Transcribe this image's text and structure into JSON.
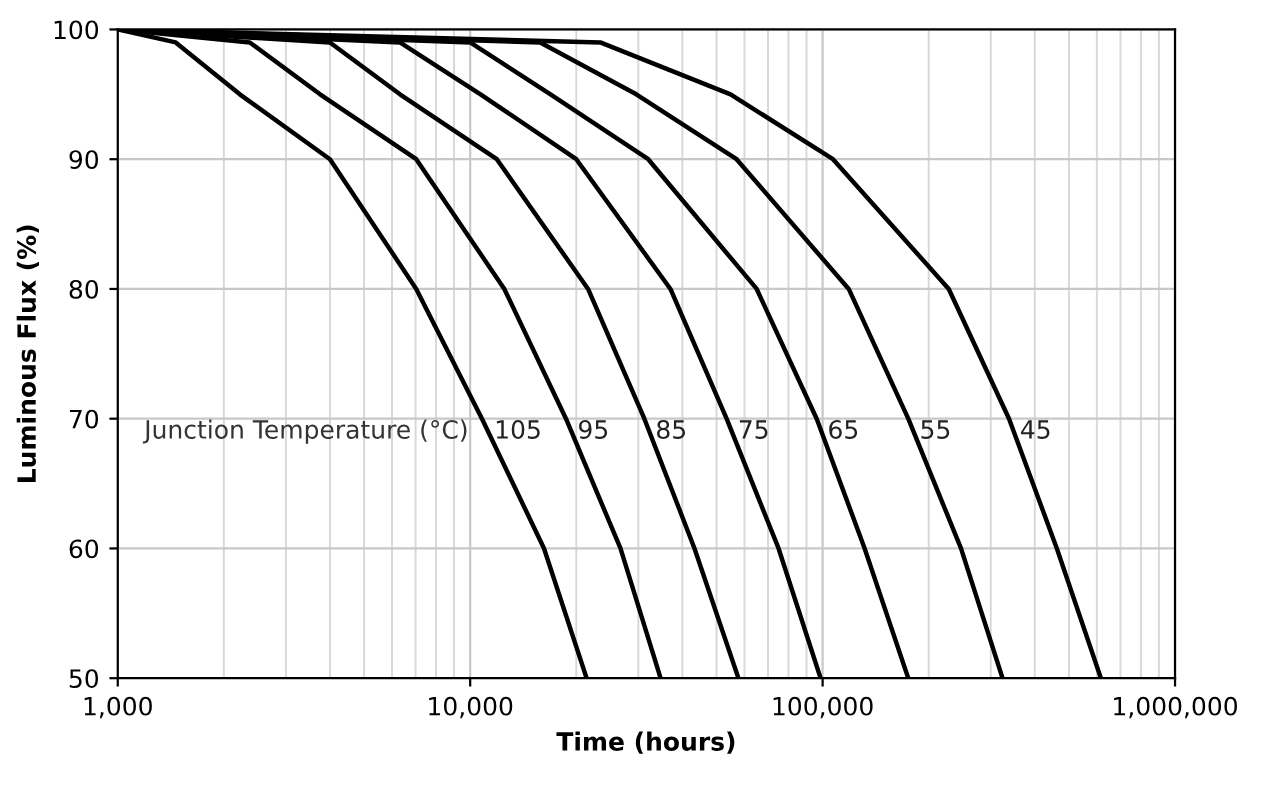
{
  "chart_data": {
    "type": "line",
    "xlabel": "Time (hours)",
    "ylabel": "Luminous Flux (%)",
    "log": "x",
    "grid": true,
    "legend": false,
    "line_style": "solid",
    "xlim": [
      1000,
      1000000
    ],
    "ylim": [
      50,
      100
    ],
    "xticks": [
      {
        "value": 1000,
        "label": "1,000"
      },
      {
        "value": 10000,
        "label": "10,000"
      },
      {
        "value": 100000,
        "label": "100,000"
      },
      {
        "value": 1000000,
        "label": "1,000,000"
      }
    ],
    "yticks": [
      50,
      60,
      70,
      80,
      90,
      100
    ],
    "annotations": [
      "Junction Temperature (°C)"
    ],
    "series": [
      {
        "name": "105",
        "color": "#000000",
        "x": [
          1000,
          1460,
          2220,
          4000,
          7030,
          10800,
          16200,
          21400
        ],
        "values": [
          100,
          99,
          95,
          90,
          80,
          70,
          60,
          50
        ]
      },
      {
        "name": "95",
        "color": "#000000",
        "x": [
          1000,
          2370,
          3750,
          7030,
          12500,
          18700,
          26700,
          34700
        ],
        "values": [
          100,
          99,
          95,
          90,
          80,
          70,
          60,
          50
        ]
      },
      {
        "name": "85",
        "color": "#000000",
        "x": [
          1000,
          4000,
          6320,
          11900,
          21600,
          31200,
          43300,
          57700
        ],
        "values": [
          100,
          99,
          95,
          90,
          80,
          70,
          60,
          50
        ]
      },
      {
        "name": "75",
        "color": "#000000",
        "x": [
          1000,
          6320,
          10700,
          20000,
          37000,
          53400,
          75000,
          98700
        ],
        "values": [
          100,
          99,
          95,
          90,
          80,
          70,
          60,
          50
        ]
      },
      {
        "name": "65",
        "color": "#000000",
        "x": [
          1000,
          10000,
          16900,
          32000,
          65000,
          96200,
          131600,
          175000
        ],
        "values": [
          100,
          99,
          95,
          90,
          80,
          70,
          60,
          50
        ]
      },
      {
        "name": "55",
        "color": "#000000",
        "x": [
          1000,
          15800,
          29600,
          57000,
          118600,
          175000,
          247000,
          324000
        ],
        "values": [
          100,
          99,
          95,
          90,
          80,
          70,
          60,
          50
        ]
      },
      {
        "name": "45",
        "color": "#000000",
        "x": [
          1000,
          23400,
          54800,
          107000,
          228000,
          338000,
          462000,
          616000
        ],
        "values": [
          100,
          99,
          95,
          90,
          80,
          70,
          60,
          50
        ]
      }
    ]
  }
}
